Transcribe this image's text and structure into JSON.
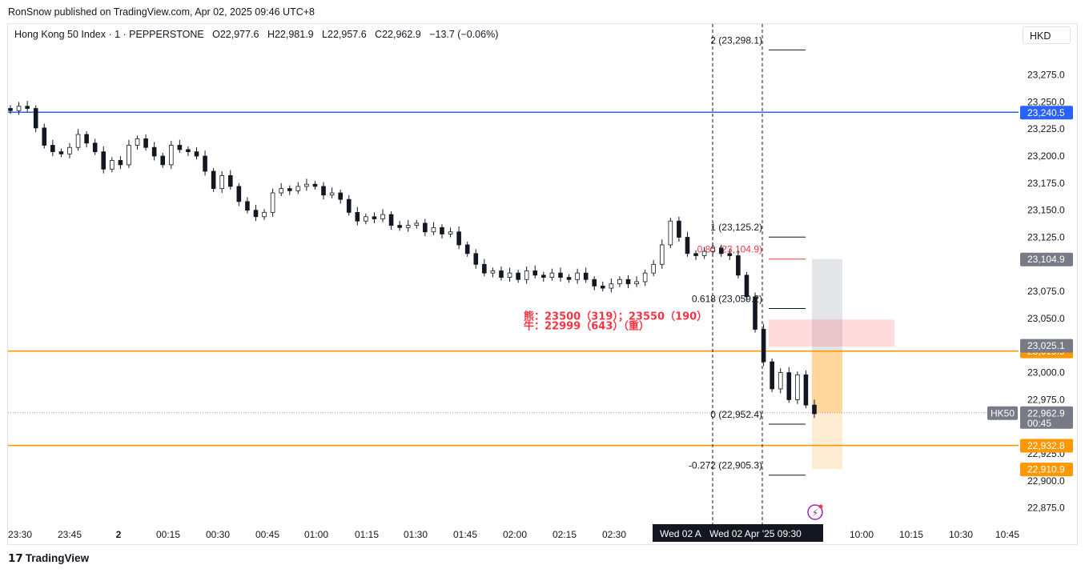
{
  "header": {
    "published": "RonSnow published on TradingView.com, Apr 02, 2025 09:46 UTC+8",
    "symbol": "Hong Kong 50 Index · 1 · PEPPERSTONE",
    "open": "O22,977.6",
    "high": "H22,981.9",
    "low": "L22,957.6",
    "close": "C22,962.9",
    "change": "−13.7 (−0.06%)",
    "currency": "HKD"
  },
  "footer": {
    "brand": "TradingView"
  },
  "colors": {
    "up": "#ffffff",
    "down": "#131722",
    "blue": "#2962ff",
    "orange": "#ff9800",
    "red": "#f23645"
  },
  "chart_data": {
    "type": "candlestick",
    "title": "Hong Kong 50 Index · 1 · PEPPERSTONE",
    "ylim": [
      22860,
      23322
    ],
    "y_ticks": [
      "23,275.0",
      "23,250.0",
      "23,225.0",
      "23,200.0",
      "23,175.0",
      "23,150.0",
      "23,125.0",
      "23,075.0",
      "23,050.0",
      "23,000.0",
      "22,975.0",
      "22,925.0",
      "22,900.0",
      "22,875.0"
    ],
    "x_ticks": [
      "23:30",
      "23:45",
      "2",
      "00:15",
      "00:30",
      "00:45",
      "01:00",
      "01:15",
      "01:30",
      "01:45",
      "02:00",
      "02:15",
      "02:30",
      "10:00",
      "10:15",
      "10:30",
      "10:45"
    ],
    "close_path": [
      23242,
      23246,
      23244,
      23226,
      23210,
      23204,
      23202,
      23208,
      23220,
      23212,
      23204,
      23188,
      23196,
      23192,
      23210,
      23216,
      23208,
      23200,
      23192,
      23210,
      23206,
      23204,
      23200,
      23186,
      23170,
      23182,
      23172,
      23158,
      23150,
      23144,
      23148,
      23166,
      23170,
      23168,
      23172,
      23174,
      23172,
      23164,
      23166,
      23160,
      23148,
      23140,
      23144,
      23142,
      23146,
      23136,
      23134,
      23136,
      23138,
      23130,
      23134,
      23128,
      23130,
      23118,
      23110,
      23100,
      23092,
      23094,
      23088,
      23092,
      23086,
      23094,
      23090,
      23088,
      23092,
      23088,
      23086,
      23092,
      23086,
      23080,
      23078,
      23082,
      23086,
      23082,
      23084,
      23092,
      23100,
      23118,
      23140,
      23125,
      23110,
      23108,
      23112,
      23115,
      23110,
      23108,
      23090,
      23070,
      23040,
      23010,
      22985,
      23000,
      22975,
      22998,
      22970,
      22962
    ],
    "horizontal_lines": [
      {
        "price": 23240.5,
        "label": "23,240.5",
        "color": "#2962ff"
      },
      {
        "price": 23019.9,
        "label": "23,019.9",
        "color": "#ff9800"
      },
      {
        "price": 22932.8,
        "label": "22,932.8",
        "color": "#ff9800"
      }
    ],
    "price_tags": [
      {
        "price": 23104.9,
        "label": "23,104.9",
        "color": "#787b86"
      },
      {
        "price": 23025.1,
        "label": "23,025.1",
        "color": "#787b86"
      },
      {
        "price": 22962.9,
        "label": "22,962.9",
        "color": "#787b86",
        "sub": "00:45",
        "symbol": "HK50"
      },
      {
        "price": 22910.9,
        "label": "22,910.9",
        "color": "#ff9800"
      }
    ],
    "fib_levels": [
      {
        "price": 23298.1,
        "label": "2 (23,298.1)",
        "color": "#131722"
      },
      {
        "price": 23125.2,
        "label": "1 (23,125.2)",
        "color": "#131722"
      },
      {
        "price": 23104.9,
        "label": "0.88 (23,104.9)",
        "color": "#f23645"
      },
      {
        "price": 23059.2,
        "label": "0.618 (23,059.2)",
        "color": "#131722"
      },
      {
        "price": 22952.4,
        "label": "0 (22,952.4)",
        "color": "#131722"
      },
      {
        "price": 22905.3,
        "label": "-0.272 (22,905.3)",
        "color": "#131722"
      }
    ],
    "position_tool": {
      "entry": 23019.9,
      "stop": 23104.9,
      "target": 22910.9
    },
    "zone": {
      "top": 23049,
      "bottom": 23024
    },
    "annotations": {
      "bear": "熊：23500（319）；23550（190）",
      "bull": "牛：22999（643）（重）"
    },
    "crosshair": {
      "left_label": "Wed 02 A",
      "right_label": "Wed 02 Apr '25   09:30"
    }
  }
}
